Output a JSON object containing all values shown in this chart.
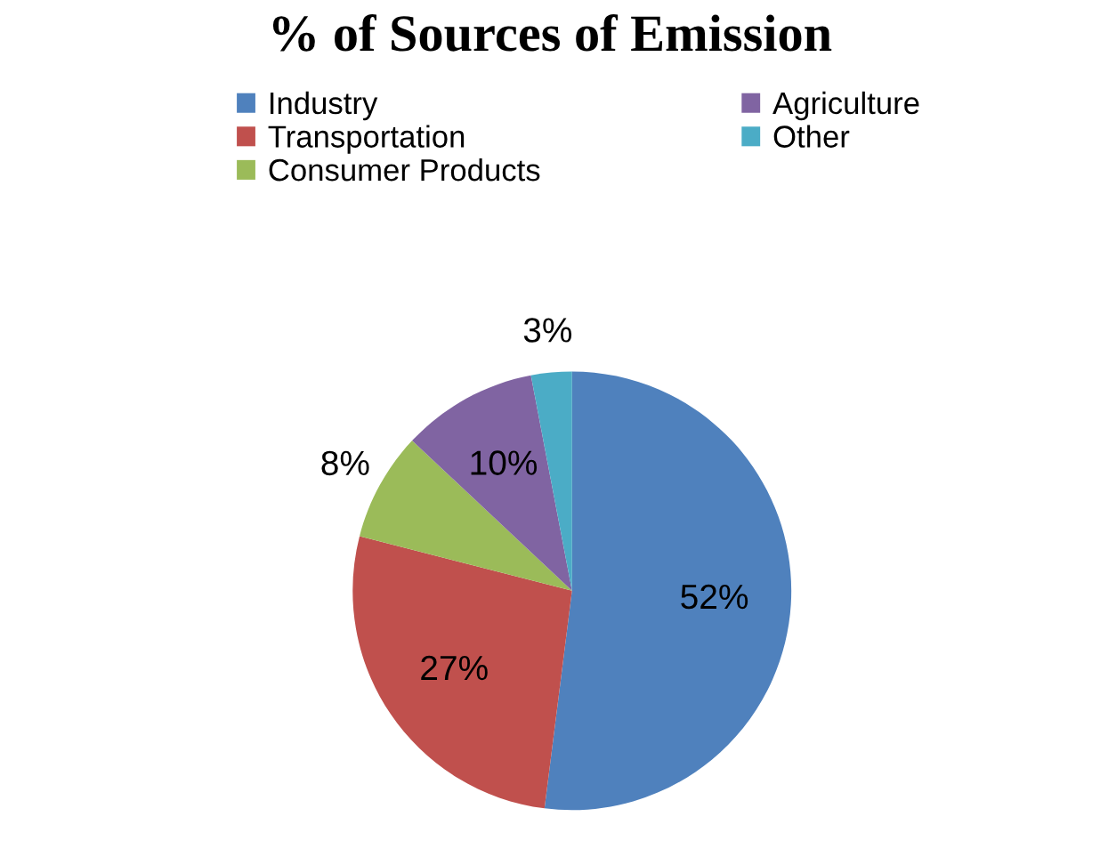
{
  "chart_data": {
    "type": "pie",
    "title": "% of Sources of Emission",
    "categories": [
      "Industry",
      "Transportation",
      "Consumer Products",
      "Agriculture",
      "Other"
    ],
    "values": [
      52,
      27,
      8,
      10,
      3
    ],
    "colors": [
      "#4f81bd",
      "#c0504d",
      "#9bbb59",
      "#8064a2",
      "#4bacc6"
    ],
    "value_labels": [
      "52%",
      "27%",
      "8%",
      "10%",
      "3%"
    ],
    "legend": "top"
  }
}
